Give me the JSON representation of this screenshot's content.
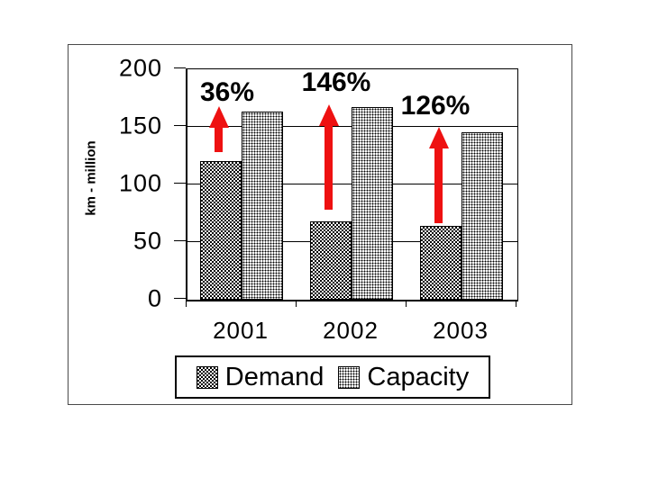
{
  "canvas": {
    "background": "#ffffff",
    "frame_border_color": "#4a4a4a"
  },
  "chart_data": {
    "type": "bar",
    "title": "",
    "xlabel": "",
    "ylabel": "km - million",
    "categories": [
      "2001",
      "2002",
      "2003"
    ],
    "series": [
      {
        "name": "Demand",
        "values": [
          120,
          68,
          64
        ],
        "pattern": "diagonal-checker",
        "fill": "black-on-white"
      },
      {
        "name": "Capacity",
        "values": [
          163,
          167,
          145
        ],
        "pattern": "dots",
        "fill": "black-on-white"
      }
    ],
    "yticks": [
      0,
      50,
      100,
      150,
      200
    ],
    "ylim": [
      0,
      200
    ],
    "grid": true,
    "legend_position": "bottom",
    "bar_outline_color": "#000000",
    "arrow_color": "#ee1111",
    "annotations": [
      {
        "label": "36%",
        "category": "2001",
        "arrow_from": 127,
        "arrow_to": 167,
        "label_cx": 176,
        "label_top": 38
      },
      {
        "label": "146%",
        "category": "2002",
        "arrow_from": 77,
        "arrow_to": 169,
        "label_cx": 297,
        "label_top": 27
      },
      {
        "label": "126%",
        "category": "2003",
        "arrow_from": 66,
        "arrow_to": 149,
        "label_cx": 407,
        "label_top": 53
      }
    ]
  }
}
